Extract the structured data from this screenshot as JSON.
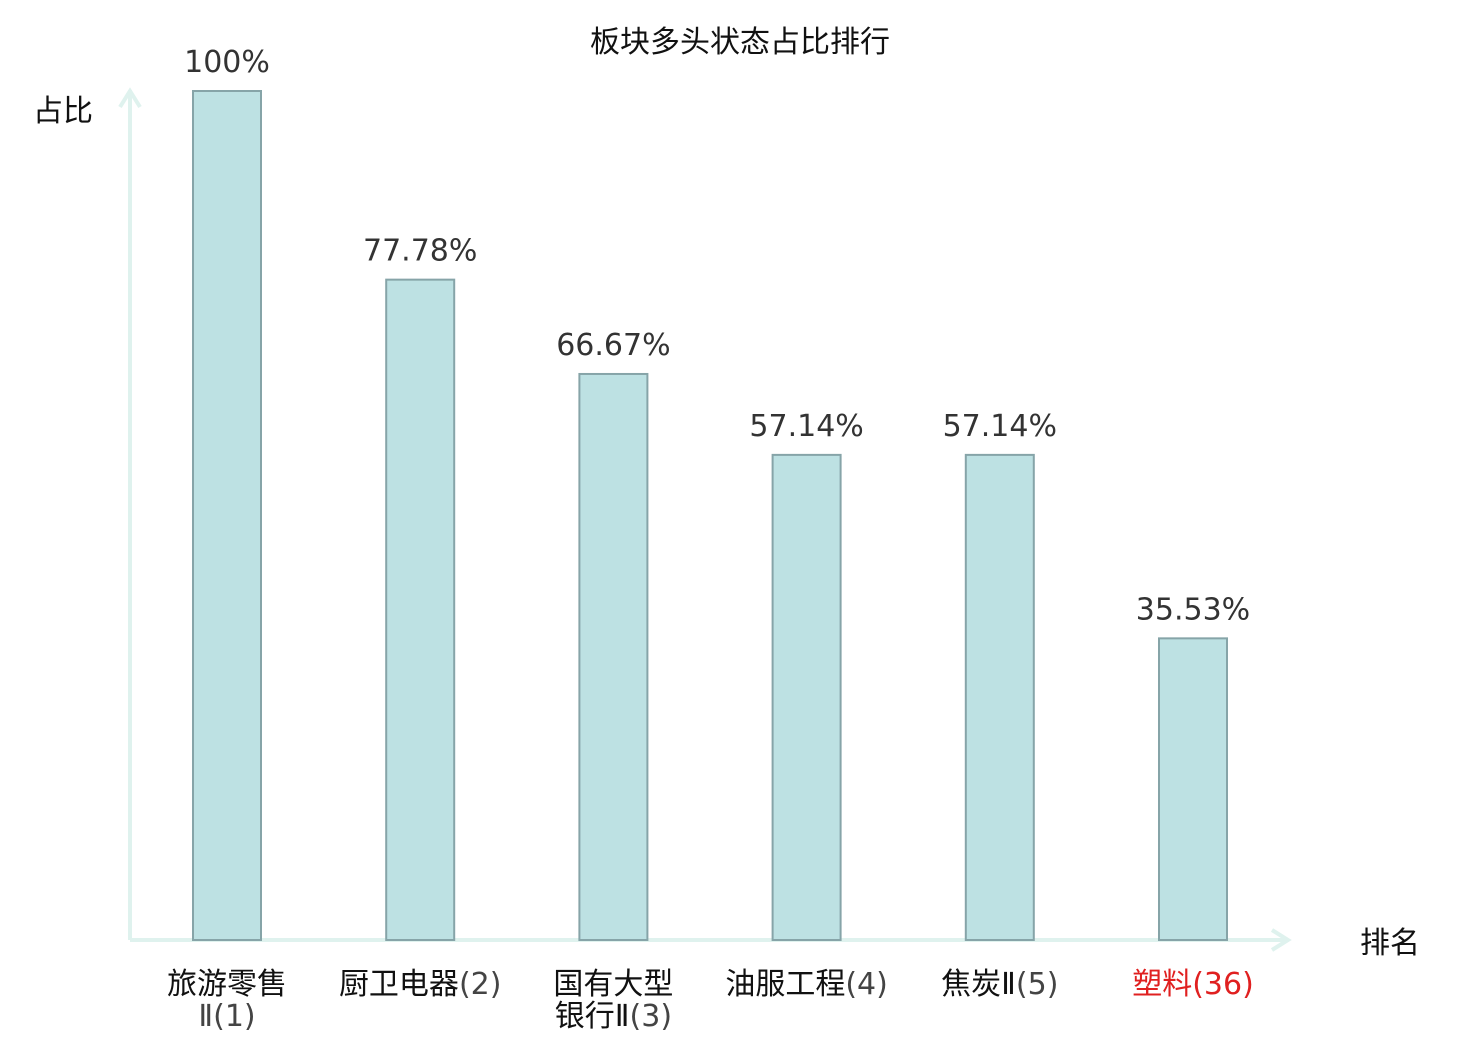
{
  "chart_data": {
    "type": "bar",
    "title": "板块多头状态占比排行",
    "xlabel": "排名",
    "ylabel": "占比",
    "ylim": [
      0,
      100
    ],
    "grid": false,
    "legend": "none",
    "categories": [
      {
        "name": "旅游零售",
        "suffix": "Ⅱ(1)",
        "highlight": false
      },
      {
        "name": "厨卫电器",
        "suffix": "(2)",
        "highlight": false
      },
      {
        "name": "国有大型",
        "suffix": "银行Ⅱ(3)",
        "highlight": false
      },
      {
        "name": "油服工程",
        "suffix": "(4)",
        "highlight": false
      },
      {
        "name": "焦炭Ⅱ",
        "suffix": "(5)",
        "highlight": false
      },
      {
        "name": "塑料",
        "suffix": "(36)",
        "highlight": true
      }
    ],
    "values": [
      100,
      77.78,
      66.67,
      57.14,
      57.14,
      35.53
    ],
    "value_labels": [
      "100%",
      "77.78%",
      "66.67%",
      "57.14%",
      "57.14%",
      "35.53%"
    ],
    "colors": {
      "bar_fill": "#bde1e3",
      "bar_stroke": "#86a4a8",
      "axis": "#dff2ee",
      "label_text": "#333333",
      "category_text": "#111111",
      "category_suffix": "#444444",
      "highlight": "#e02020"
    }
  }
}
